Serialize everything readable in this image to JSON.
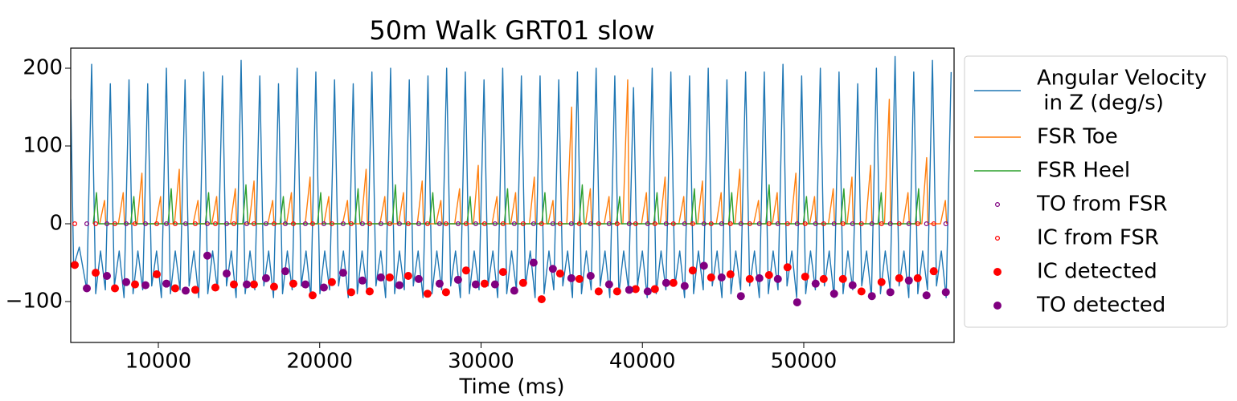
{
  "chart_data": {
    "type": "line",
    "title": "50m Walk GRT01 slow",
    "x_label": "Time (ms)",
    "xlim": [
      4570,
      59316
    ],
    "ylim": [
      -152.6,
      225.8
    ],
    "xticks": [
      10000,
      20000,
      30000,
      40000,
      50000
    ],
    "yticks": [
      {
        "value": -100,
        "label": "−100"
      },
      0,
      100,
      200
    ],
    "legend": "outside-right",
    "series": [
      {
        "name": "Angular Velocity\n in Z (deg/s)",
        "style": "line",
        "color": "#1f77b4",
        "x": [
          4570,
          4750,
          5100,
          5566,
          5866,
          6116,
          6416,
          6716,
          7024,
          7274,
          7574,
          7874,
          8182,
          8432,
          8732,
          9032,
          9340,
          9590,
          9890,
          10190,
          10498,
          10748,
          11048,
          11348,
          11656,
          11906,
          12206,
          12506,
          12814,
          13064,
          13364,
          13664,
          13972,
          14222,
          14522,
          14822,
          15130,
          15380,
          15680,
          15980,
          16288,
          16538,
          16838,
          17138,
          17446,
          17696,
          17996,
          18296,
          18604,
          18854,
          19154,
          19454,
          19762,
          20012,
          20312,
          20612,
          20920,
          21170,
          21470,
          21770,
          22078,
          22328,
          22628,
          22928,
          23236,
          23486,
          23786,
          24086,
          24394,
          24644,
          24944,
          25244,
          25552,
          25802,
          26102,
          26402,
          26710,
          26960,
          27260,
          27560,
          27868,
          28118,
          28418,
          28718,
          29026,
          29276,
          29576,
          29876,
          30184,
          30434,
          30734,
          31034,
          31342,
          31592,
          31892,
          32192,
          32500,
          32750,
          33050,
          33350,
          33658,
          33908,
          34208,
          34508,
          34816,
          35066,
          35366,
          35666,
          35974,
          36224,
          36524,
          36824,
          37132,
          37382,
          37682,
          37982,
          38290,
          38540,
          38840,
          39140,
          39448,
          39698,
          39998,
          40298,
          40606,
          40856,
          41156,
          41456,
          41764,
          42014,
          42314,
          42614,
          42922,
          43172,
          43472,
          43772,
          44080,
          44330,
          44630,
          44930,
          45238,
          45488,
          45788,
          46088,
          46396,
          46646,
          46946,
          47246,
          47554,
          47804,
          48104,
          48404,
          48712,
          48962,
          49262,
          49562,
          49870,
          50120,
          50420,
          50720,
          51028,
          51278,
          51578,
          51878,
          52186,
          52436,
          52736,
          53036,
          53344,
          53594,
          53894,
          54194,
          54502,
          54752,
          55052,
          55352,
          55660,
          55910,
          56210,
          56510,
          56818,
          57068,
          57368,
          57668,
          57976,
          58226,
          58526,
          58826,
          59134
        ],
        "values": [
          160,
          -55,
          -30,
          -85,
          205,
          -90,
          -35,
          -85,
          180,
          -80,
          -35,
          -95,
          185,
          -90,
          -35,
          -85,
          180,
          -80,
          -35,
          -95,
          200,
          -90,
          -35,
          -85,
          185,
          -80,
          -35,
          -95,
          195,
          -90,
          -35,
          -85,
          190,
          -80,
          -35,
          -95,
          210,
          -90,
          -35,
          -85,
          190,
          -80,
          -35,
          -95,
          180,
          -90,
          -35,
          -85,
          200,
          -80,
          -35,
          -95,
          195,
          -90,
          -35,
          -85,
          185,
          -80,
          -35,
          -95,
          180,
          -90,
          -35,
          -85,
          195,
          -80,
          -35,
          -95,
          200,
          -90,
          -35,
          -85,
          185,
          -80,
          -35,
          -95,
          190,
          -90,
          -35,
          -85,
          200,
          -80,
          -35,
          -95,
          195,
          -90,
          -35,
          -85,
          185,
          -80,
          -35,
          -95,
          200,
          -90,
          -35,
          -85,
          190,
          -80,
          -35,
          -95,
          190,
          -90,
          -35,
          -85,
          185,
          -80,
          -35,
          -95,
          195,
          -90,
          -35,
          -85,
          200,
          -80,
          -35,
          -95,
          190,
          -90,
          -35,
          -85,
          175,
          -80,
          -35,
          -95,
          200,
          -90,
          -35,
          -85,
          195,
          -80,
          -35,
          -95,
          190,
          -90,
          -35,
          -85,
          200,
          -80,
          -35,
          -95,
          185,
          -90,
          -35,
          -85,
          195,
          -80,
          -35,
          -95,
          195,
          -90,
          -35,
          -85,
          205,
          -80,
          -35,
          -95,
          190,
          -90,
          -35,
          -85,
          200,
          -80,
          -35,
          -95,
          195,
          -90,
          -35,
          -85,
          180,
          -80,
          -35,
          -95,
          200,
          -90,
          -35,
          -85,
          215,
          -80,
          -35,
          -95,
          195,
          -90,
          -35,
          -85,
          210,
          -80,
          -35,
          -95,
          195
        ]
      },
      {
        "name": "FSR Toe",
        "style": "line",
        "color": "#ff7f0e",
        "x": [
          6366,
          6666,
          6746,
          7524,
          7824,
          7904,
          8682,
          8982,
          9062,
          9840,
          10140,
          10220,
          10998,
          11298,
          11378,
          12156,
          12456,
          12536,
          13314,
          13614,
          13694,
          14472,
          14772,
          14852,
          15630,
          15930,
          16010,
          16788,
          17088,
          17168,
          17946,
          18246,
          18326,
          19104,
          19404,
          19484,
          20262,
          20562,
          20642,
          21420,
          21720,
          21800,
          22578,
          22878,
          22958,
          23736,
          24036,
          24116,
          24894,
          25194,
          25274,
          26052,
          26352,
          26432,
          27210,
          27510,
          27590,
          28368,
          28668,
          28748,
          29526,
          29826,
          29906,
          30684,
          30984,
          31064,
          31842,
          32142,
          32222,
          33000,
          33300,
          33380,
          34158,
          34458,
          34538,
          35316,
          35616,
          35696,
          36474,
          36774,
          36854,
          37632,
          37932,
          38012,
          38790,
          39090,
          39170,
          39948,
          40248,
          40328,
          41106,
          41406,
          41486,
          42264,
          42564,
          42644,
          43422,
          43722,
          43802,
          44580,
          44880,
          44960,
          45738,
          46038,
          46118,
          46896,
          47196,
          47276,
          48054,
          48354,
          48434,
          49212,
          49512,
          49592,
          50370,
          50670,
          50750,
          51528,
          51828,
          51908,
          52686,
          52986,
          53066,
          53844,
          54144,
          54224,
          55002,
          55302,
          55382,
          56160,
          56460,
          56540,
          57318,
          57618,
          57698,
          58476,
          58776,
          58856
        ],
        "values": [
          0,
          30,
          0,
          0,
          40,
          0,
          0,
          65,
          0,
          0,
          35,
          0,
          0,
          70,
          0,
          0,
          30,
          0,
          0,
          35,
          0,
          0,
          45,
          0,
          0,
          55,
          0,
          0,
          30,
          0,
          0,
          40,
          0,
          0,
          60,
          0,
          0,
          35,
          0,
          0,
          30,
          0,
          0,
          70,
          0,
          0,
          35,
          0,
          0,
          40,
          0,
          0,
          55,
          0,
          0,
          30,
          0,
          0,
          45,
          0,
          0,
          75,
          0,
          0,
          35,
          0,
          0,
          40,
          0,
          0,
          60,
          0,
          0,
          30,
          0,
          0,
          150,
          0,
          0,
          45,
          0,
          0,
          35,
          0,
          0,
          185,
          0,
          0,
          40,
          0,
          0,
          60,
          0,
          0,
          35,
          0,
          0,
          55,
          0,
          0,
          40,
          0,
          0,
          70,
          0,
          0,
          30,
          0,
          0,
          40,
          0,
          0,
          65,
          0,
          0,
          35,
          0,
          0,
          45,
          0,
          0,
          60,
          0,
          0,
          75,
          0,
          0,
          160,
          0,
          0,
          40,
          0,
          0,
          85,
          0,
          0,
          30,
          0
        ]
      },
      {
        "name": "FSR Heel",
        "style": "line",
        "color": "#2ca02c",
        "x": [
          5966,
          6166,
          6286,
          8282,
          8482,
          8602,
          10598,
          10798,
          10918,
          12914,
          13114,
          13234,
          15230,
          15430,
          15550,
          17546,
          17746,
          17866,
          19862,
          20062,
          20182,
          22178,
          22378,
          22498,
          24494,
          24694,
          24814,
          26810,
          27010,
          27130,
          29126,
          29326,
          29446,
          31442,
          31642,
          31762,
          33758,
          33958,
          34078,
          36074,
          36274,
          36394,
          38390,
          38590,
          38710,
          40706,
          40906,
          41026,
          43022,
          43222,
          43342,
          45338,
          45538,
          45658,
          47654,
          47854,
          47974,
          49970,
          50170,
          50290,
          52286,
          52486,
          52606,
          54602,
          54802,
          54922,
          56918,
          57118,
          57238
        ],
        "values": [
          0,
          40,
          0,
          0,
          35,
          0,
          0,
          45,
          0,
          0,
          40,
          0,
          0,
          50,
          0,
          0,
          35,
          0,
          0,
          40,
          0,
          0,
          45,
          0,
          0,
          50,
          0,
          0,
          40,
          0,
          0,
          35,
          0,
          0,
          45,
          0,
          0,
          40,
          0,
          0,
          50,
          0,
          0,
          35,
          0,
          0,
          40,
          0,
          0,
          45,
          0,
          0,
          40,
          0,
          0,
          50,
          0,
          0,
          35,
          0,
          0,
          45,
          0,
          0,
          40,
          0,
          0,
          45,
          0
        ]
      },
      {
        "name": "TO from FSR",
        "style": "hollow-marker",
        "color": "#800080",
        "x": [
          5567,
          6812,
          8008,
          9203,
          10498,
          11693,
          13037,
          14233,
          15478,
          16673,
          17868,
          19113,
          20258,
          21454,
          22649,
          23794,
          24940,
          26135,
          27430,
          28575,
          29671,
          30866,
          32061,
          33256,
          34451,
          35597,
          36792,
          37937,
          39182,
          40328,
          41473,
          42619,
          43814,
          44909,
          46105,
          47250,
          48395,
          49591,
          50736,
          51881,
          53027,
          54222,
          55367,
          56513,
          57608,
          58804
        ],
        "values": [
          0,
          0,
          0,
          0,
          0,
          0,
          0,
          0,
          0,
          0,
          0,
          0,
          0,
          0,
          0,
          0,
          0,
          0,
          0,
          0,
          0,
          0,
          0,
          0,
          0,
          0,
          0,
          0,
          0,
          0,
          0,
          0,
          0,
          0,
          0,
          0,
          0,
          0,
          0,
          0,
          0,
          0,
          0,
          0,
          0,
          0
        ]
      },
      {
        "name": "IC from FSR",
        "style": "hollow-marker",
        "color": "#ff0000",
        "x": [
          4821,
          6115,
          7310,
          8555,
          9900,
          11045,
          12290,
          13535,
          14681,
          15926,
          17171,
          18366,
          19561,
          20756,
          21952,
          23097,
          24342,
          25487,
          26683,
          27828,
          29073,
          30218,
          31364,
          32609,
          33754,
          34900,
          36095,
          37290,
          38435,
          39581,
          40776,
          41921,
          43117,
          44262,
          45457,
          46652,
          47848,
          48993,
          50089,
          51234,
          52429,
          53575,
          54820,
          55915,
          57061,
          58057
        ],
        "values": [
          0,
          0,
          0,
          0,
          0,
          0,
          0,
          0,
          0,
          0,
          0,
          0,
          0,
          0,
          0,
          0,
          0,
          0,
          0,
          0,
          0,
          0,
          0,
          0,
          0,
          0,
          0,
          0,
          0,
          0,
          0,
          0,
          0,
          0,
          0,
          0,
          0,
          0,
          0,
          0,
          0,
          0,
          0,
          0,
          0,
          0
        ]
      },
      {
        "name": "IC detected",
        "style": "filled-marker",
        "color": "#ff0000",
        "x": [
          4821,
          6115,
          7310,
          8555,
          9900,
          11045,
          12290,
          13535,
          14681,
          15926,
          17171,
          18366,
          19561,
          20756,
          21952,
          23097,
          24342,
          25487,
          26683,
          27828,
          29073,
          30218,
          31364,
          32609,
          33754,
          34900,
          36095,
          37290,
          38435,
          39581,
          40776,
          41921,
          43117,
          44262,
          45457,
          46652,
          47848,
          48993,
          50089,
          51234,
          52429,
          53575,
          54820,
          55915,
          57061,
          58057
        ],
        "values": [
          -53,
          -63,
          -83,
          -78,
          -65,
          -83,
          -85,
          -82,
          -78,
          -78,
          -81,
          -77,
          -92,
          -75,
          -88,
          -87,
          -69,
          -67,
          -90,
          -88,
          -60,
          -77,
          -62,
          -76,
          -97,
          -64,
          -71,
          -87,
          -87,
          -84,
          -84,
          -76,
          -60,
          -69,
          -65,
          -71,
          -66,
          -56,
          -68,
          -71,
          -71,
          -87,
          -75,
          -70,
          -70,
          -61
        ]
      },
      {
        "name": "TO detected",
        "style": "filled-marker",
        "color": "#800080",
        "x": [
          5567,
          6812,
          8008,
          9203,
          10498,
          11693,
          13037,
          14233,
          15478,
          16673,
          17868,
          19113,
          20258,
          21454,
          22649,
          23794,
          24940,
          26135,
          27430,
          28575,
          29671,
          30866,
          32061,
          33256,
          34451,
          35597,
          36792,
          37937,
          39182,
          40328,
          41473,
          42619,
          43814,
          44909,
          46105,
          47250,
          48395,
          49591,
          50736,
          51881,
          53027,
          54222,
          55367,
          56513,
          57608,
          58804
        ],
        "values": [
          -83,
          -67,
          -75,
          -79,
          -77,
          -86,
          -41,
          -64,
          -78,
          -70,
          -61,
          -78,
          -82,
          -63,
          -73,
          -69,
          -79,
          -71,
          -77,
          -72,
          -78,
          -78,
          -86,
          -50,
          -58,
          -70,
          -67,
          -78,
          -85,
          -87,
          -76,
          -80,
          -54,
          -69,
          -93,
          -70,
          -71,
          -101,
          -77,
          -90,
          -79,
          -93,
          -88,
          -73,
          -92,
          -88
        ]
      }
    ]
  }
}
